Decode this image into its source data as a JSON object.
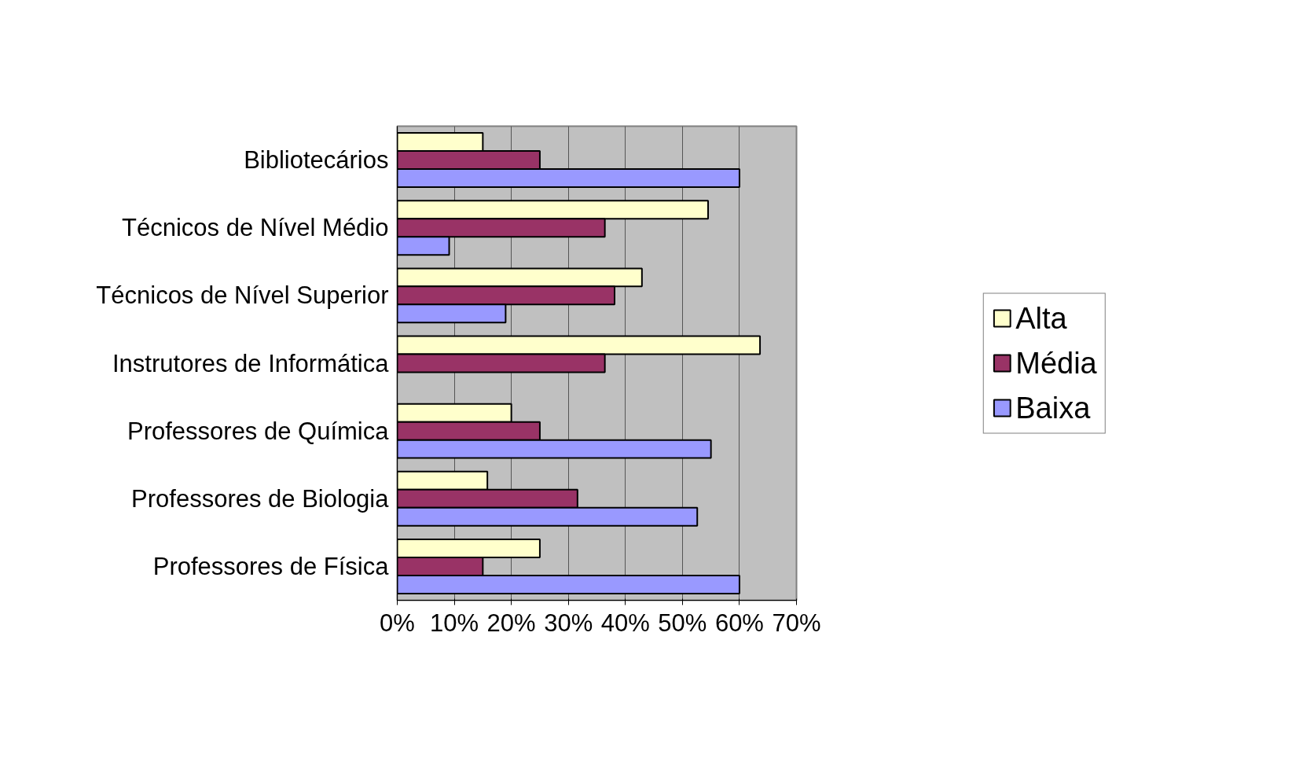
{
  "chart_data": {
    "type": "bar",
    "orientation": "horizontal",
    "categories": [
      "Bibliotecários",
      "Técnicos de Nível Médio",
      "Técnicos de Nível Superior",
      "Instrutores de Informática",
      "Professores de Química",
      "Professores de Biologia",
      "Professores de Física"
    ],
    "series": [
      {
        "name": "Alta",
        "color": "#ffffcc",
        "values": [
          15,
          54.5,
          42.9,
          63.6,
          20,
          15.8,
          25
        ]
      },
      {
        "name": "Média",
        "color": "#993366",
        "values": [
          25,
          36.4,
          38.1,
          36.4,
          25,
          31.6,
          15
        ]
      },
      {
        "name": "Baixa",
        "color": "#9999ff",
        "values": [
          60,
          9.1,
          19,
          0,
          55,
          52.6,
          60
        ]
      }
    ],
    "xlim": [
      0,
      70
    ],
    "xticks": [
      {
        "value": 0,
        "label": "0%"
      },
      {
        "value": 10,
        "label": "10%"
      },
      {
        "value": 20,
        "label": "20%"
      },
      {
        "value": 30,
        "label": "30%"
      },
      {
        "value": 40,
        "label": "40%"
      },
      {
        "value": 50,
        "label": "50%"
      },
      {
        "value": 60,
        "label": "60%"
      },
      {
        "value": 70,
        "label": "70%"
      }
    ],
    "grid": "x",
    "legend": "right"
  }
}
